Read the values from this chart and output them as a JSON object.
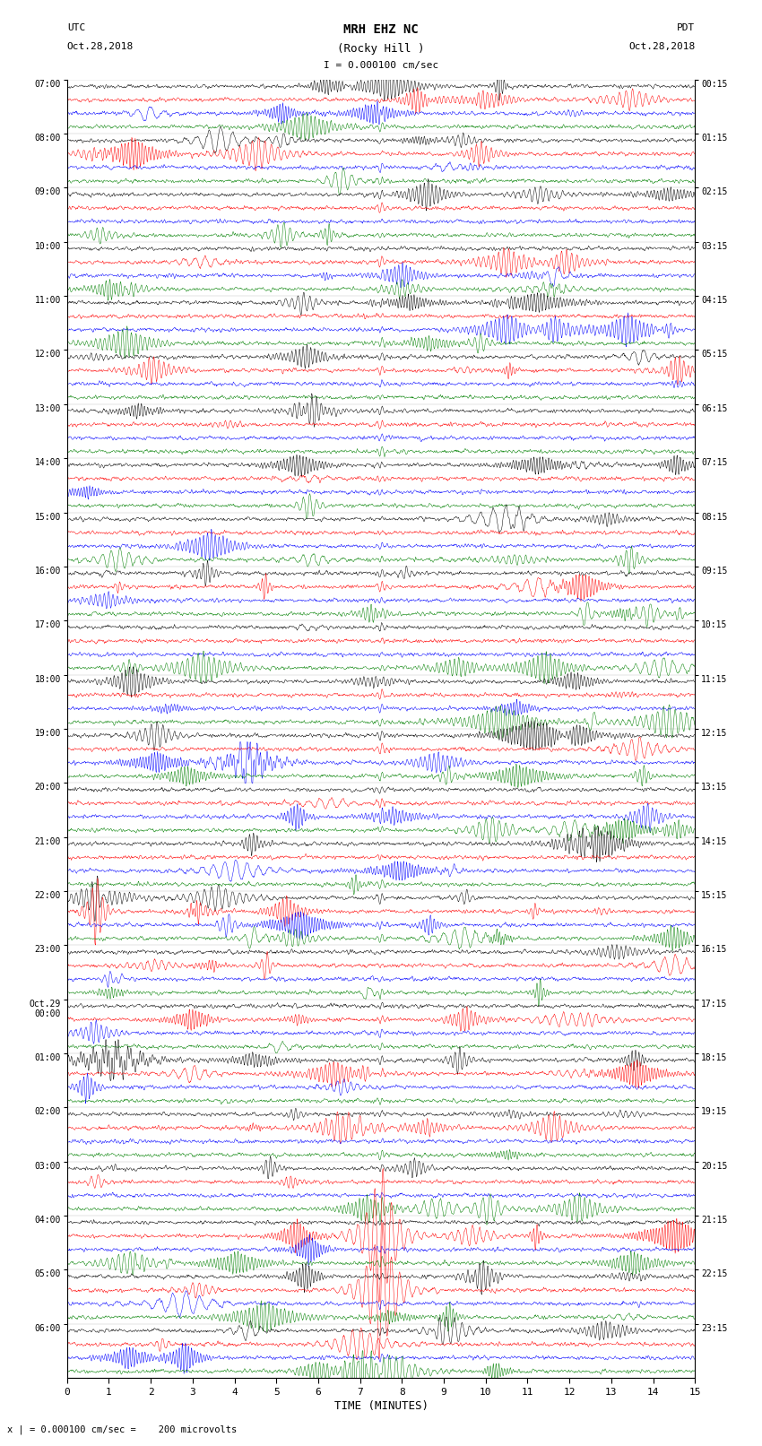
{
  "title_line1": "MRH EHZ NC",
  "title_line2": "(Rocky Hill )",
  "scale_label": "I = 0.000100 cm/sec",
  "left_header": "UTC",
  "left_date": "Oct.28,2018",
  "right_header": "PDT",
  "right_date": "Oct.28,2018",
  "xlabel": "TIME (MINUTES)",
  "bottom_note": "x | = 0.000100 cm/sec =    200 microvolts",
  "left_times_labeled": [
    "07:00",
    "08:00",
    "09:00",
    "10:00",
    "11:00",
    "12:00",
    "13:00",
    "14:00",
    "15:00",
    "16:00",
    "17:00",
    "18:00",
    "19:00",
    "20:00",
    "21:00",
    "22:00",
    "23:00",
    "Oct.29\n00:00",
    "01:00",
    "02:00",
    "03:00",
    "04:00",
    "05:00",
    "06:00"
  ],
  "right_times_labeled": [
    "00:15",
    "01:15",
    "02:15",
    "03:15",
    "04:15",
    "05:15",
    "06:15",
    "07:15",
    "08:15",
    "09:15",
    "10:15",
    "11:15",
    "12:15",
    "13:15",
    "14:15",
    "15:15",
    "16:15",
    "17:15",
    "18:15",
    "19:15",
    "20:15",
    "21:15",
    "22:15",
    "23:15"
  ],
  "colors": [
    "#000000",
    "#ff0000",
    "#0000ff",
    "#008000"
  ],
  "n_hours": 24,
  "n_traces_per_hour": 4,
  "time_min": 0,
  "time_max": 15,
  "background_color": "#ffffff",
  "trace_amplitude": 0.38,
  "noise_amplitude": 0.12,
  "seed": 42,
  "n_points": 2000,
  "linewidth": 0.35
}
